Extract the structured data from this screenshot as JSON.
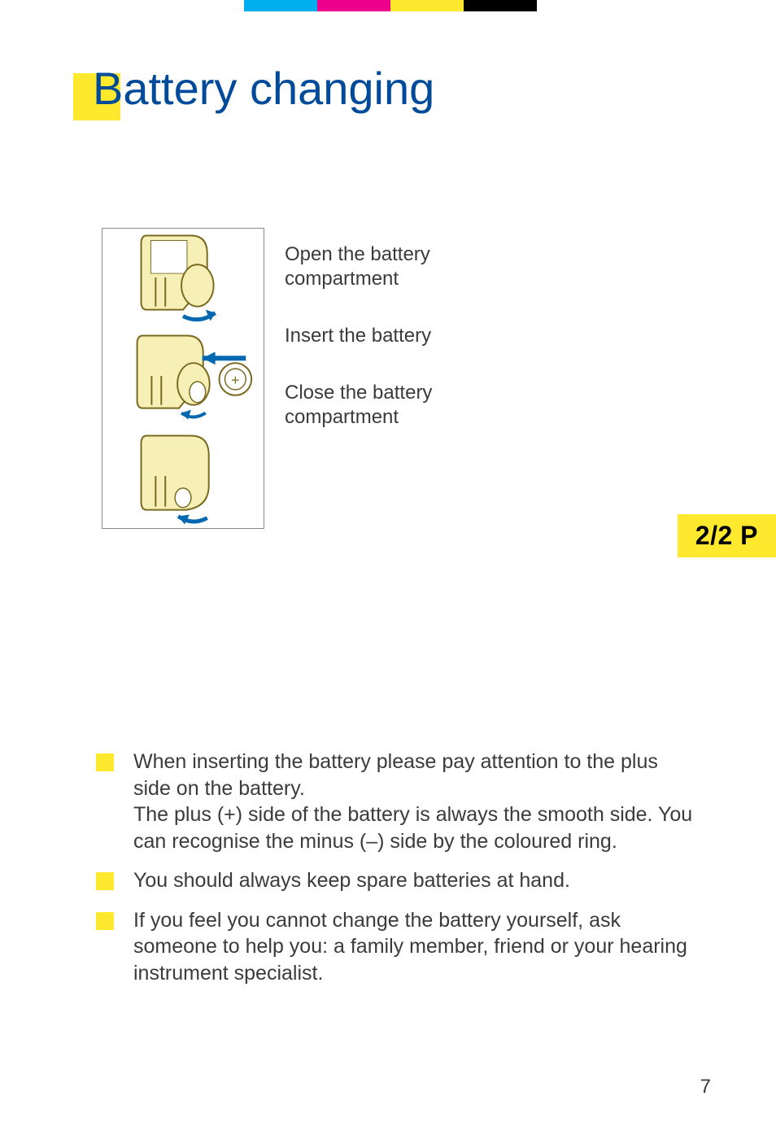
{
  "stripes": {
    "colors": [
      "#00aeef",
      "#ec008c",
      "#ffe92f",
      "#000000"
    ],
    "widths": [
      90,
      90,
      90,
      90
    ]
  },
  "heading": {
    "text": "Battery changing",
    "block_color": "#ffe92f",
    "text_color": "#004a9a"
  },
  "figure": {
    "frame_border": "#888888",
    "device_fill": "#f6f0b7",
    "device_stroke": "#7a6a20",
    "arrow_color": "#0067b1",
    "captions": [
      "Open the battery compartment",
      "Insert the battery",
      "Close the battery compartment"
    ]
  },
  "badge": {
    "text": "2/2 P",
    "bg": "#ffe92f"
  },
  "bullets": [
    "When inserting the battery please pay attention to the plus side on the battery.\nThe plus (+) side of the battery is always the smooth side. You can recognise the minus (–) side by the coloured ring.",
    "You should always keep spare batteries at hand.",
    "If you feel you cannot change the battery yourself, ask someone to help you: a family member, friend or your hearing instrument specialist."
  ],
  "page_number": "7"
}
